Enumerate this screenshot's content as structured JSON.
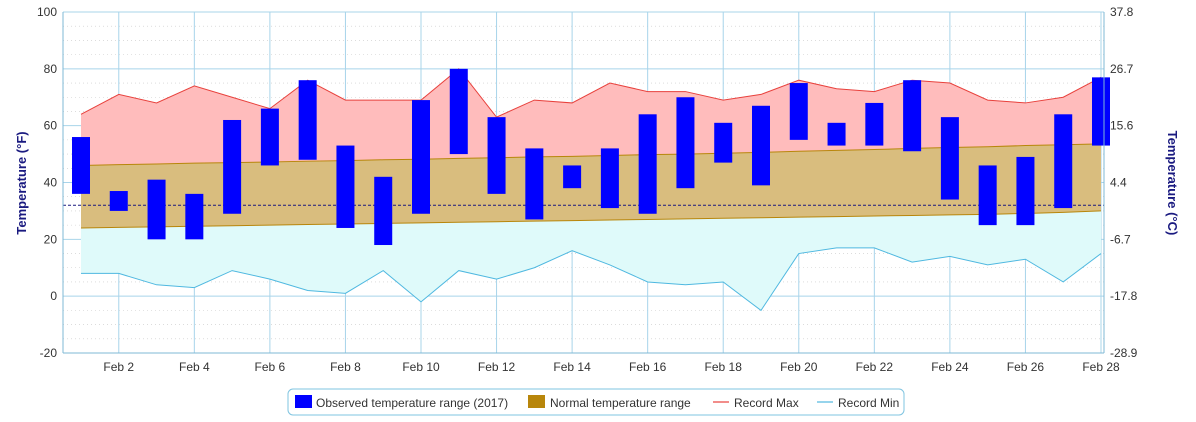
{
  "chart_data": {
    "type": "bar",
    "x": [
      "Feb 1",
      "Feb 2",
      "Feb 3",
      "Feb 4",
      "Feb 5",
      "Feb 6",
      "Feb 7",
      "Feb 8",
      "Feb 9",
      "Feb 10",
      "Feb 11",
      "Feb 12",
      "Feb 13",
      "Feb 14",
      "Feb 15",
      "Feb 16",
      "Feb 17",
      "Feb 18",
      "Feb 19",
      "Feb 20",
      "Feb 21",
      "Feb 22",
      "Feb 23",
      "Feb 24",
      "Feb 25",
      "Feb 26",
      "Feb 27",
      "Feb 28"
    ],
    "x_tick_labels": [
      "Feb 2",
      "Feb 4",
      "Feb 6",
      "Feb 8",
      "Feb 10",
      "Feb 12",
      "Feb 14",
      "Feb 16",
      "Feb 18",
      "Feb 20",
      "Feb 22",
      "Feb 24",
      "Feb 26",
      "Feb 28"
    ],
    "ylabel": "Temperature (°F)",
    "ylabel_right": "Temperature (°C)",
    "ylim": [
      -20,
      100
    ],
    "y_ticks": [
      "-20",
      "0",
      "20",
      "40",
      "60",
      "80",
      "100"
    ],
    "y_ticks_right": [
      "-28.9",
      "-17.8",
      "-6.7",
      "4.4",
      "15.6",
      "26.7",
      "37.8"
    ],
    "grid": true,
    "legend_position": "bottom-center",
    "reference_line": 32,
    "series": [
      {
        "name": "Observed temperature range (2017)",
        "type": "range-bar",
        "color": "#0000ff",
        "low": [
          36,
          30,
          20,
          20,
          29,
          46,
          48,
          24,
          18,
          29,
          50,
          36,
          27,
          38,
          31,
          29,
          38,
          47,
          39,
          55,
          53,
          53,
          51,
          34,
          25,
          25,
          31,
          53
        ],
        "high": [
          56,
          37,
          41,
          36,
          62,
          66,
          76,
          53,
          42,
          69,
          80,
          63,
          52,
          46,
          52,
          64,
          70,
          61,
          67,
          75,
          61,
          68,
          76,
          63,
          46,
          49,
          64,
          77
        ]
      },
      {
        "name": "Normal temperature range",
        "type": "area-range",
        "color": "#b8860b",
        "low": [
          24.0,
          24.2,
          24.4,
          24.6,
          24.8,
          25.0,
          25.2,
          25.4,
          25.6,
          25.8,
          26.0,
          26.2,
          26.4,
          26.6,
          26.8,
          27.0,
          27.2,
          27.4,
          27.6,
          27.8,
          28.0,
          28.2,
          28.4,
          28.6,
          28.8,
          29.1,
          29.5,
          30.0
        ],
        "high": [
          46.0,
          46.3,
          46.5,
          46.8,
          47.0,
          47.2,
          47.5,
          47.7,
          48.0,
          48.2,
          48.5,
          48.7,
          49.0,
          49.2,
          49.5,
          49.8,
          50.0,
          50.3,
          50.6,
          51.0,
          51.3,
          51.6,
          52.0,
          52.3,
          52.6,
          53.0,
          53.3,
          53.6
        ]
      },
      {
        "name": "Record Max",
        "type": "line",
        "color": "#e8413c",
        "values": [
          64,
          71,
          68,
          74,
          70,
          66,
          76,
          69,
          69,
          69,
          80,
          63,
          69,
          68,
          75,
          72,
          72,
          69,
          71,
          76,
          73,
          72,
          76,
          75,
          69,
          68,
          70,
          77
        ]
      },
      {
        "name": "Record Min",
        "type": "line",
        "color": "#4fb8e0",
        "values": [
          8,
          8,
          4,
          3,
          9,
          6,
          2,
          1,
          9,
          -2,
          9,
          6,
          10,
          16,
          11,
          5,
          4,
          5,
          -5,
          15,
          17,
          17,
          12,
          14,
          11,
          13,
          5,
          15
        ]
      }
    ]
  }
}
